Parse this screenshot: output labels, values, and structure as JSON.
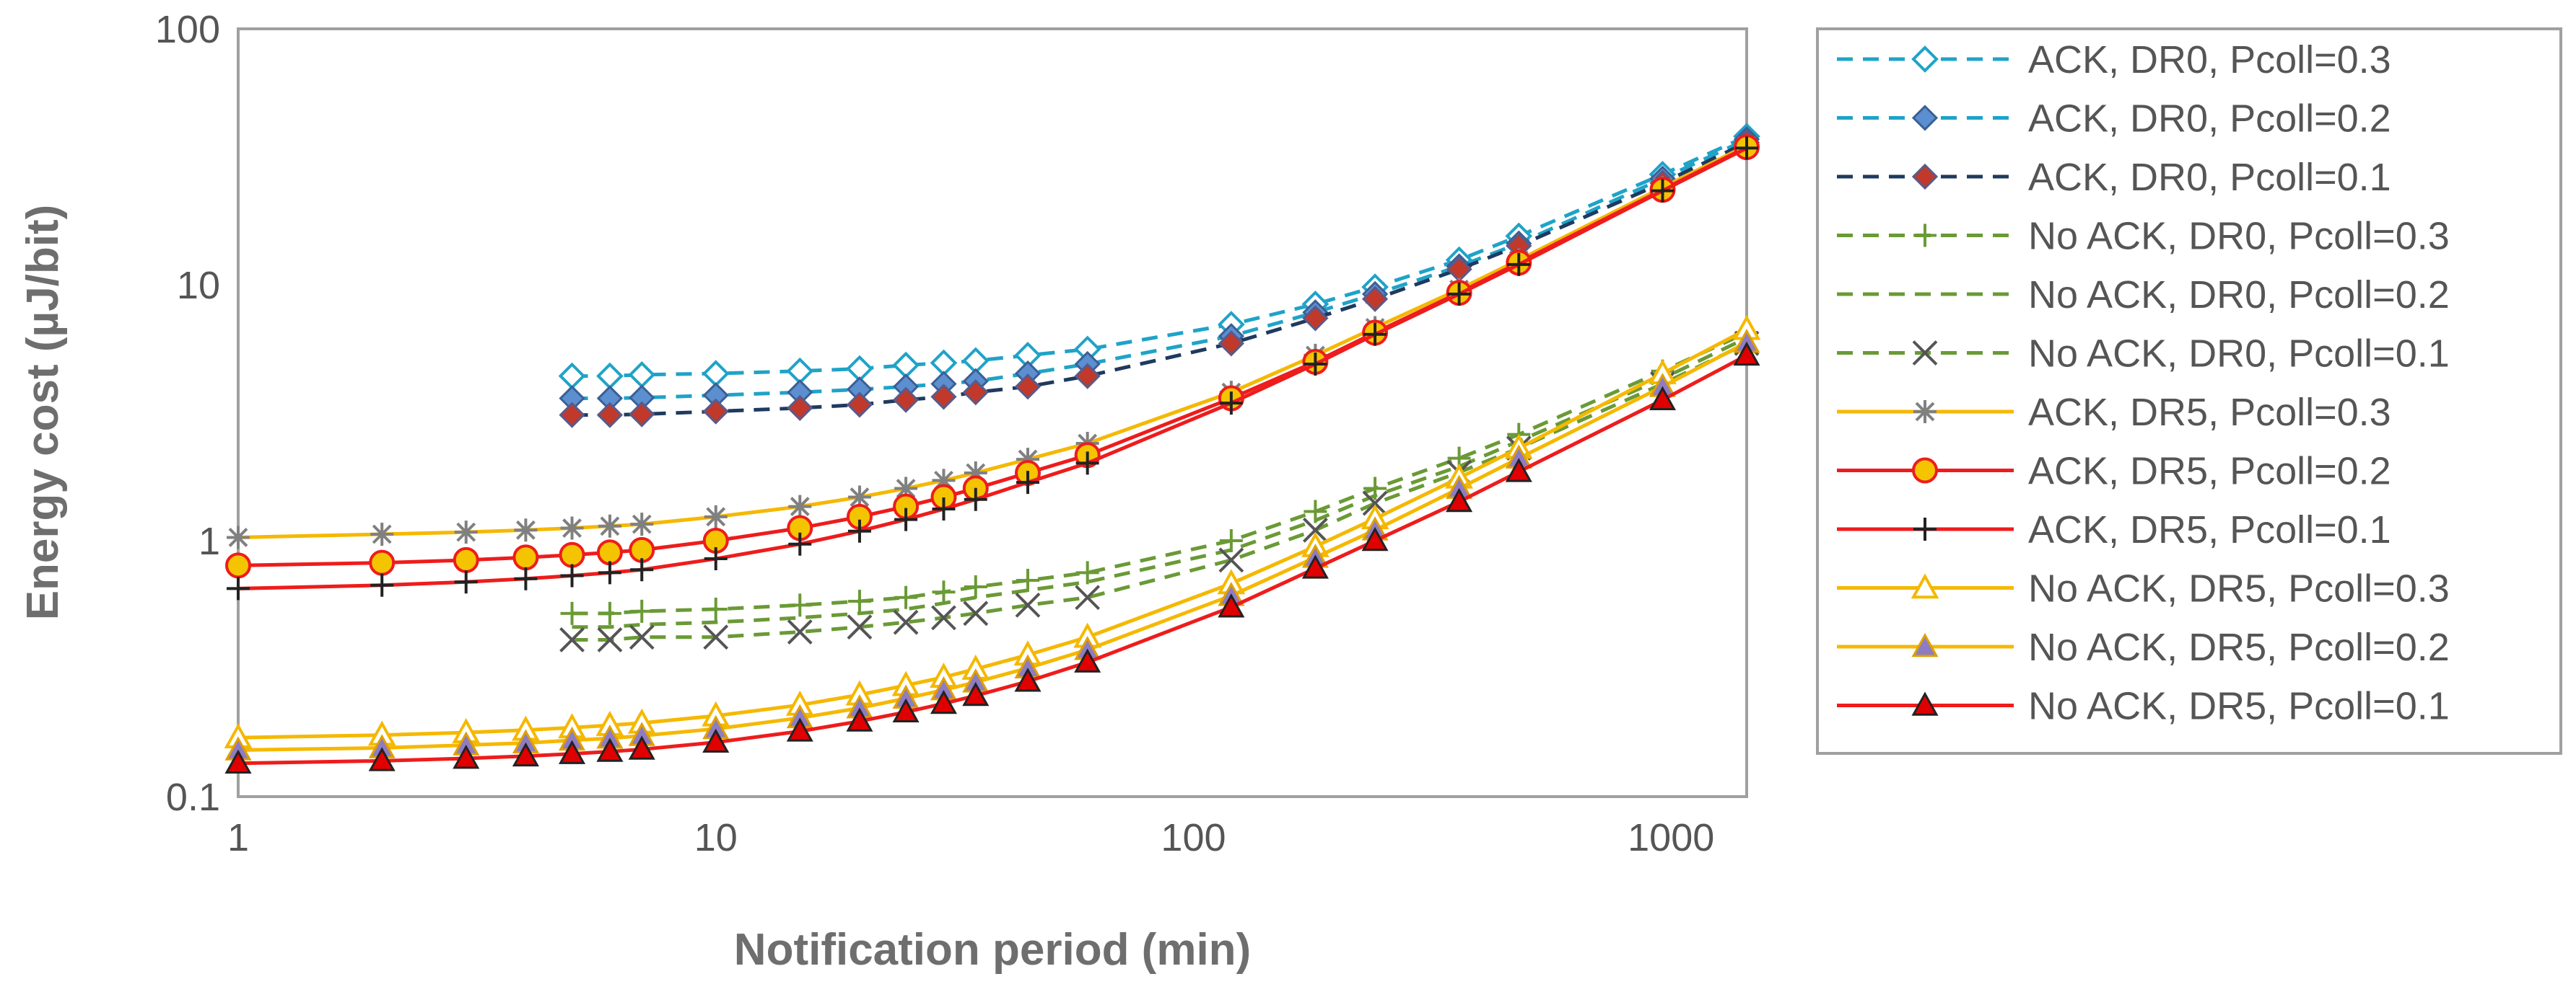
{
  "chart_data": {
    "type": "line",
    "title": "",
    "xlabel": "Notification period (min)",
    "ylabel": "Energy cost (µJ/bit)",
    "x_scale": "log",
    "y_scale": "log",
    "xlim": [
      1,
      1440
    ],
    "ylim": [
      0.1,
      100
    ],
    "x_ticks": [
      "1",
      "10",
      "100",
      "1000"
    ],
    "y_ticks": [
      "0.1",
      "1",
      "10",
      "100"
    ],
    "grid": false,
    "legend_position": "right",
    "series": [
      {
        "name": "ACK, DR0, Pcoll=0.3",
        "color": "#1fa3c8",
        "dash": true,
        "marker": "diamond-open",
        "x": [
          5,
          6,
          7,
          10,
          15,
          20,
          25,
          30,
          35,
          45,
          60,
          120,
          180,
          240,
          360,
          480,
          960,
          1440
        ],
        "y": [
          4.4,
          4.4,
          4.45,
          4.5,
          4.6,
          4.7,
          4.85,
          4.95,
          5.05,
          5.3,
          5.6,
          7.0,
          8.4,
          9.8,
          12.5,
          15.5,
          27.0,
          38.0
        ]
      },
      {
        "name": "ACK, DR0, Pcoll=0.2",
        "color": "#1fa3c8",
        "dash": true,
        "marker": "diamond-blue",
        "x": [
          5,
          6,
          7,
          10,
          15,
          20,
          25,
          30,
          35,
          45,
          60,
          120,
          180,
          240,
          360,
          480,
          960,
          1440
        ],
        "y": [
          3.6,
          3.6,
          3.62,
          3.7,
          3.8,
          3.9,
          4.0,
          4.1,
          4.2,
          4.5,
          4.9,
          6.3,
          7.8,
          9.2,
          11.8,
          14.5,
          26.0,
          37.0
        ]
      },
      {
        "name": "ACK, DR0, Pcoll=0.1",
        "color": "#1f3a5f",
        "dash": true,
        "marker": "diamond-red",
        "x": [
          5,
          6,
          7,
          10,
          15,
          20,
          25,
          30,
          35,
          45,
          60,
          120,
          180,
          240,
          360,
          480,
          960,
          1440
        ],
        "y": [
          3.1,
          3.1,
          3.12,
          3.2,
          3.3,
          3.4,
          3.55,
          3.65,
          3.8,
          4.0,
          4.4,
          5.9,
          7.4,
          8.8,
          11.5,
          14.2,
          25.0,
          36.0
        ]
      },
      {
        "name": "No ACK, DR0, Pcoll=0.3",
        "color": "#6a9a35",
        "dash": true,
        "marker": "plus",
        "x": [
          5,
          6,
          7,
          10,
          15,
          20,
          25,
          30,
          35,
          45,
          60,
          120,
          180,
          240,
          360,
          480,
          960,
          1440
        ],
        "y": [
          0.52,
          0.52,
          0.53,
          0.54,
          0.56,
          0.58,
          0.6,
          0.63,
          0.66,
          0.7,
          0.75,
          1.0,
          1.3,
          1.6,
          2.1,
          2.6,
          4.6,
          6.5
        ]
      },
      {
        "name": "No ACK, DR0, Pcoll=0.2",
        "color": "#6a9a35",
        "dash": true,
        "marker": "none",
        "x": [
          5,
          6,
          7,
          10,
          15,
          20,
          25,
          30,
          35,
          45,
          60,
          120,
          180,
          240,
          360,
          480,
          960,
          1440
        ],
        "y": [
          0.46,
          0.46,
          0.47,
          0.48,
          0.5,
          0.52,
          0.54,
          0.57,
          0.6,
          0.64,
          0.69,
          0.92,
          1.2,
          1.5,
          1.95,
          2.45,
          4.3,
          6.2
        ]
      },
      {
        "name": "No ACK, DR0, Pcoll=0.1",
        "color": "#6a9a35",
        "dash": true,
        "marker": "x",
        "x": [
          5,
          6,
          7,
          10,
          15,
          20,
          25,
          30,
          35,
          45,
          60,
          120,
          180,
          240,
          360,
          480,
          960,
          1440
        ],
        "y": [
          0.41,
          0.41,
          0.42,
          0.42,
          0.44,
          0.46,
          0.48,
          0.5,
          0.52,
          0.56,
          0.6,
          0.84,
          1.1,
          1.4,
          1.85,
          2.3,
          4.1,
          5.9
        ]
      },
      {
        "name": "ACK, DR5, Pcoll=0.3",
        "color": "#f5b800",
        "dash": false,
        "marker": "star",
        "x": [
          1,
          2,
          3,
          4,
          5,
          6,
          7,
          10,
          15,
          20,
          25,
          30,
          35,
          45,
          60,
          120,
          180,
          240,
          360,
          480,
          960,
          1440
        ],
        "y": [
          1.03,
          1.06,
          1.08,
          1.1,
          1.12,
          1.14,
          1.16,
          1.24,
          1.36,
          1.48,
          1.6,
          1.72,
          1.84,
          2.08,
          2.4,
          3.8,
          5.3,
          6.8,
          9.6,
          12.5,
          24.0,
          35.0
        ]
      },
      {
        "name": "ACK, DR5, Pcoll=0.2",
        "color": "#ee1c1c",
        "dash": false,
        "marker": "circle",
        "x": [
          1,
          2,
          3,
          4,
          5,
          6,
          7,
          10,
          15,
          20,
          25,
          30,
          35,
          45,
          60,
          120,
          180,
          240,
          360,
          480,
          960,
          1440
        ],
        "y": [
          0.8,
          0.82,
          0.84,
          0.86,
          0.88,
          0.9,
          0.92,
          1.0,
          1.12,
          1.24,
          1.36,
          1.48,
          1.6,
          1.84,
          2.16,
          3.6,
          5.0,
          6.5,
          9.3,
          12.2,
          23.5,
          34.5
        ]
      },
      {
        "name": "ACK, DR5, Pcoll=0.1",
        "color": "#ee1c1c",
        "dash": false,
        "marker": "plus",
        "x": [
          1,
          2,
          3,
          4,
          5,
          6,
          7,
          10,
          15,
          20,
          25,
          30,
          35,
          45,
          60,
          120,
          180,
          240,
          360,
          480,
          960,
          1440
        ],
        "y": [
          0.65,
          0.67,
          0.69,
          0.71,
          0.73,
          0.75,
          0.77,
          0.85,
          0.97,
          1.09,
          1.21,
          1.33,
          1.45,
          1.69,
          2.01,
          3.45,
          4.9,
          6.4,
          9.2,
          12.0,
          23.3,
          34.2
        ]
      },
      {
        "name": "No ACK, DR5, Pcoll=0.3",
        "color": "#f5b800",
        "dash": false,
        "marker": "triangle-open",
        "x": [
          1,
          2,
          3,
          4,
          5,
          6,
          7,
          10,
          15,
          20,
          25,
          30,
          35,
          45,
          60,
          120,
          180,
          240,
          360,
          480,
          960,
          1440
        ],
        "y": [
          0.17,
          0.174,
          0.178,
          0.182,
          0.186,
          0.19,
          0.194,
          0.207,
          0.228,
          0.25,
          0.272,
          0.293,
          0.315,
          0.358,
          0.42,
          0.68,
          0.95,
          1.22,
          1.76,
          2.3,
          4.5,
          6.7
        ]
      },
      {
        "name": "No ACK, DR5, Pcoll=0.2",
        "color": "#f5b800",
        "dash": false,
        "marker": "triangle-purple",
        "x": [
          1,
          2,
          3,
          4,
          5,
          6,
          7,
          10,
          15,
          20,
          25,
          30,
          35,
          45,
          60,
          120,
          180,
          240,
          360,
          480,
          960,
          1440
        ],
        "y": [
          0.152,
          0.155,
          0.159,
          0.162,
          0.166,
          0.169,
          0.173,
          0.184,
          0.203,
          0.222,
          0.242,
          0.261,
          0.28,
          0.318,
          0.375,
          0.61,
          0.86,
          1.1,
          1.6,
          2.1,
          4.0,
          5.95
        ]
      },
      {
        "name": "No ACK, DR5, Pcoll=0.1",
        "color": "#ee1c1c",
        "dash": false,
        "marker": "triangle-red",
        "x": [
          1,
          2,
          3,
          4,
          5,
          6,
          7,
          10,
          15,
          20,
          25,
          30,
          35,
          45,
          60,
          120,
          180,
          240,
          360,
          480,
          960,
          1440
        ],
        "y": [
          0.135,
          0.138,
          0.141,
          0.144,
          0.147,
          0.15,
          0.153,
          0.163,
          0.18,
          0.197,
          0.214,
          0.231,
          0.248,
          0.282,
          0.335,
          0.55,
          0.78,
          1.0,
          1.42,
          1.86,
          3.55,
          5.3
        ]
      }
    ]
  }
}
